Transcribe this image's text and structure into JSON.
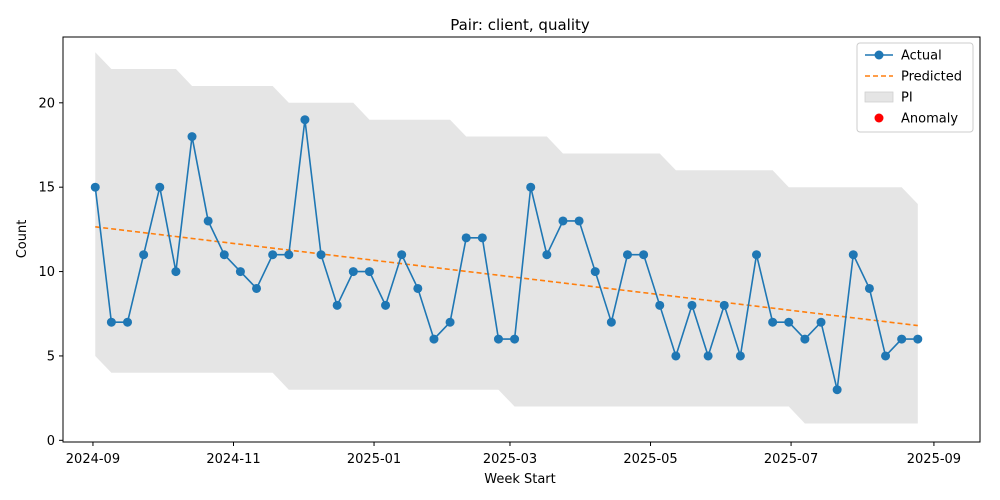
{
  "chart_data": {
    "type": "line",
    "title": "Pair: client, quality",
    "xlabel": "Week Start",
    "ylabel": "Count",
    "xlim": [
      "2024-08-19",
      "2025-09-21"
    ],
    "ylim": [
      -0.1,
      23.9
    ],
    "x_ticks": [
      {
        "date": "2024-09-01",
        "label": "2024-09"
      },
      {
        "date": "2024-11-01",
        "label": "2024-11"
      },
      {
        "date": "2025-01-01",
        "label": "2025-01"
      },
      {
        "date": "2025-03-01",
        "label": "2025-03"
      },
      {
        "date": "2025-05-01",
        "label": "2025-05"
      },
      {
        "date": "2025-07-01",
        "label": "2025-07"
      },
      {
        "date": "2025-09-01",
        "label": "2025-09"
      }
    ],
    "y_ticks": [
      0,
      5,
      10,
      15,
      20
    ],
    "start_date": "2024-09-02",
    "interval_days": 7,
    "series": [
      {
        "name": "Actual",
        "type": "line-marker",
        "color": "#1f77b4",
        "values": [
          15,
          7,
          7,
          11,
          15,
          10,
          18,
          13,
          11,
          10,
          9,
          11,
          11,
          19,
          11,
          8,
          10,
          10,
          8,
          11,
          9,
          6,
          7,
          12,
          12,
          6,
          6,
          15,
          11,
          13,
          13,
          10,
          7,
          11,
          11,
          8,
          5,
          8,
          5,
          8,
          5,
          11,
          7,
          7,
          6,
          7,
          3,
          11,
          9,
          5,
          6,
          6
        ]
      },
      {
        "name": "Predicted",
        "type": "dashed-line",
        "color": "#ff7f0e",
        "start": 12.65,
        "end": 6.8
      },
      {
        "name": "PI",
        "type": "band",
        "color": "#e5e5e5",
        "lower": [
          5,
          4,
          4,
          4,
          4,
          4,
          4,
          4,
          4,
          4,
          4,
          4,
          3,
          3,
          3,
          3,
          3,
          3,
          3,
          3,
          3,
          3,
          3,
          3,
          3,
          3,
          2,
          2,
          2,
          2,
          2,
          2,
          2,
          2,
          2,
          2,
          2,
          2,
          2,
          2,
          2,
          2,
          2,
          2,
          1,
          1,
          1,
          1,
          1,
          1,
          1,
          1
        ],
        "upper": [
          23,
          22,
          22,
          22,
          22,
          22,
          21,
          21,
          21,
          21,
          21,
          21,
          20,
          20,
          20,
          20,
          20,
          19,
          19,
          19,
          19,
          19,
          19,
          18,
          18,
          18,
          18,
          18,
          18,
          17,
          17,
          17,
          17,
          17,
          17,
          17,
          16,
          16,
          16,
          16,
          16,
          16,
          16,
          15,
          15,
          15,
          15,
          15,
          15,
          15,
          15,
          14
        ]
      },
      {
        "name": "Anomaly",
        "type": "scatter",
        "color": "#ff0000",
        "values": []
      }
    ],
    "legend": {
      "position": "top-right",
      "entries": [
        {
          "label": "Actual",
          "kind": "line-marker",
          "color": "#1f77b4"
        },
        {
          "label": "Predicted",
          "kind": "dashed",
          "color": "#ff7f0e"
        },
        {
          "label": "PI",
          "kind": "patch",
          "color": "#e5e5e5"
        },
        {
          "label": "Anomaly",
          "kind": "dot",
          "color": "#ff0000"
        }
      ]
    }
  }
}
